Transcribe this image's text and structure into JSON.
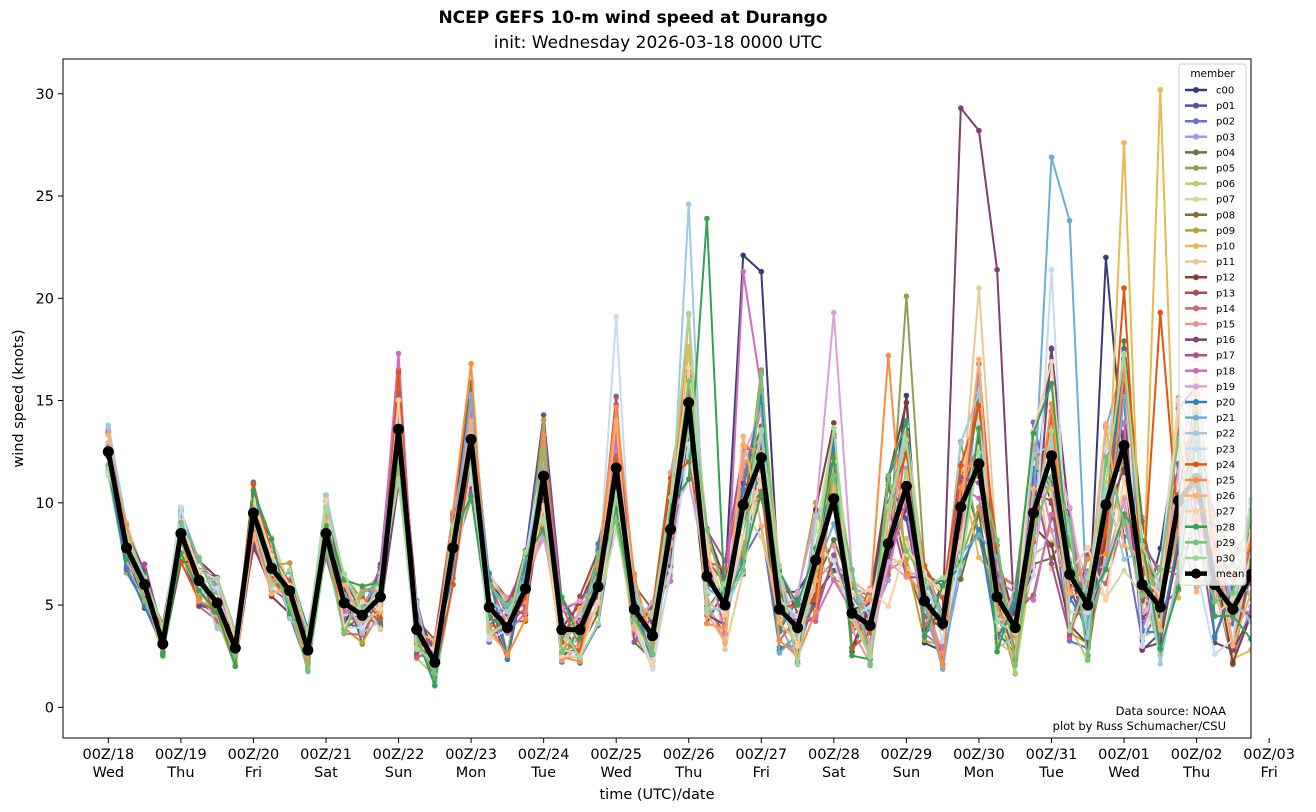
{
  "chart_data": {
    "type": "line",
    "title": "NCEP GEFS 10-m wind speed at Durango",
    "subtitle": "init: Wednesday 2026-03-18 0000 UTC",
    "xlabel": "time (UTC)/date",
    "ylabel": "wind speed (knots)",
    "ylim": [
      -1.5,
      31.7
    ],
    "yticks": [
      0,
      5,
      10,
      15,
      20,
      25,
      30
    ],
    "x_hours_range": [
      -15,
      378
    ],
    "step_hours": 6,
    "xticks": [
      {
        "hour": 0,
        "line1": "00Z/18",
        "line2": "Wed"
      },
      {
        "hour": 24,
        "line1": "00Z/19",
        "line2": "Thu"
      },
      {
        "hour": 48,
        "line1": "00Z/20",
        "line2": "Fri"
      },
      {
        "hour": 72,
        "line1": "00Z/21",
        "line2": "Sat"
      },
      {
        "hour": 96,
        "line1": "00Z/22",
        "line2": "Sun"
      },
      {
        "hour": 120,
        "line1": "00Z/23",
        "line2": "Mon"
      },
      {
        "hour": 144,
        "line1": "00Z/24",
        "line2": "Tue"
      },
      {
        "hour": 168,
        "line1": "00Z/25",
        "line2": "Wed"
      },
      {
        "hour": 192,
        "line1": "00Z/26",
        "line2": "Thu"
      },
      {
        "hour": 216,
        "line1": "00Z/27",
        "line2": "Fri"
      },
      {
        "hour": 240,
        "line1": "00Z/28",
        "line2": "Sat"
      },
      {
        "hour": 264,
        "line1": "00Z/29",
        "line2": "Sun"
      },
      {
        "hour": 288,
        "line1": "00Z/30",
        "line2": "Mon"
      },
      {
        "hour": 312,
        "line1": "00Z/31",
        "line2": "Tue"
      },
      {
        "hour": 336,
        "line1": "00Z/01",
        "line2": "Wed"
      },
      {
        "hour": 360,
        "line1": "00Z/02",
        "line2": "Thu"
      },
      {
        "hour": 384,
        "line1": "00Z/03",
        "line2": "Fri"
      }
    ],
    "legend": {
      "title": "member",
      "placement": "top-right"
    },
    "members": [
      {
        "name": "c00",
        "color": "#393b79"
      },
      {
        "name": "p01",
        "color": "#5254a3"
      },
      {
        "name": "p02",
        "color": "#6b6ecf"
      },
      {
        "name": "p03",
        "color": "#9c9ede"
      },
      {
        "name": "p04",
        "color": "#637939"
      },
      {
        "name": "p05",
        "color": "#8ca252"
      },
      {
        "name": "p06",
        "color": "#b5cf6b"
      },
      {
        "name": "p07",
        "color": "#cedb9c"
      },
      {
        "name": "p08",
        "color": "#8c6d31"
      },
      {
        "name": "p09",
        "color": "#bd9e39"
      },
      {
        "name": "p10",
        "color": "#e7ba52"
      },
      {
        "name": "p11",
        "color": "#e7cb94"
      },
      {
        "name": "p12",
        "color": "#843c39"
      },
      {
        "name": "p13",
        "color": "#ad494a"
      },
      {
        "name": "p14",
        "color": "#d6616b"
      },
      {
        "name": "p15",
        "color": "#e7969c"
      },
      {
        "name": "p16",
        "color": "#7b4173"
      },
      {
        "name": "p17",
        "color": "#a55194"
      },
      {
        "name": "p18",
        "color": "#ce6dbd"
      },
      {
        "name": "p19",
        "color": "#de9ed6"
      },
      {
        "name": "p20",
        "color": "#3182bd"
      },
      {
        "name": "p21",
        "color": "#6baed6"
      },
      {
        "name": "p22",
        "color": "#9ecae1"
      },
      {
        "name": "p23",
        "color": "#c6dbef"
      },
      {
        "name": "p24",
        "color": "#e6550d"
      },
      {
        "name": "p25",
        "color": "#fd8d3c"
      },
      {
        "name": "p26",
        "color": "#fdae6b"
      },
      {
        "name": "p27",
        "color": "#fdd0a2"
      },
      {
        "name": "p28",
        "color": "#31a354"
      },
      {
        "name": "p29",
        "color": "#74c476"
      },
      {
        "name": "p30",
        "color": "#a1d99b"
      }
    ],
    "mean_label": "mean",
    "mean": [
      12.5,
      7.8,
      6.0,
      3.1,
      8.5,
      6.2,
      5.1,
      2.9,
      9.5,
      6.8,
      5.7,
      2.8,
      8.5,
      5.1,
      4.5,
      5.4,
      13.6,
      3.8,
      2.2,
      7.8,
      13.1,
      4.9,
      3.9,
      5.8,
      11.3,
      3.8,
      3.8,
      5.9,
      11.7,
      4.8,
      3.5,
      8.7,
      14.9,
      6.4,
      5.0,
      9.9,
      12.2,
      4.8,
      3.9,
      7.2,
      10.2,
      4.6,
      4.0,
      8.0,
      10.8,
      5.2,
      4.1,
      9.8,
      11.9,
      5.4,
      3.9,
      9.5,
      12.3,
      6.5,
      5.0,
      9.9,
      12.8,
      6.0,
      4.9,
      10.1,
      11.2,
      6.0,
      4.8,
      6.5
    ],
    "spaghetti_peaks": {
      "p16": [
        [
          282,
          29.3
        ],
        [
          288,
          28.2
        ],
        [
          294,
          21.4
        ]
      ],
      "p10": [
        [
          336,
          27.6
        ],
        [
          348,
          30.2
        ]
      ],
      "p21": [
        [
          312,
          26.9
        ],
        [
          318,
          23.8
        ]
      ],
      "p22": [
        [
          192,
          24.6
        ]
      ],
      "p28": [
        [
          198,
          23.9
        ]
      ],
      "c00": [
        [
          210,
          22.1
        ],
        [
          216,
          21.3
        ],
        [
          330,
          22.0
        ]
      ],
      "p24": [
        [
          336,
          20.5
        ],
        [
          348,
          19.3
        ]
      ],
      "p11": [
        [
          288,
          20.5
        ]
      ],
      "p05": [
        [
          264,
          20.1
        ]
      ],
      "p18": [
        [
          96,
          17.3
        ],
        [
          210,
          21.3
        ]
      ],
      "p23": [
        [
          312,
          21.4
        ],
        [
          168,
          19.1
        ]
      ],
      "p19": [
        [
          240,
          19.3
        ]
      ],
      "p25": [
        [
          120,
          16.8
        ],
        [
          258,
          17.2
        ]
      ]
    },
    "source_text": "Data source: NOAA",
    "credit_text": "plot by Russ Schumacher/CSU"
  }
}
